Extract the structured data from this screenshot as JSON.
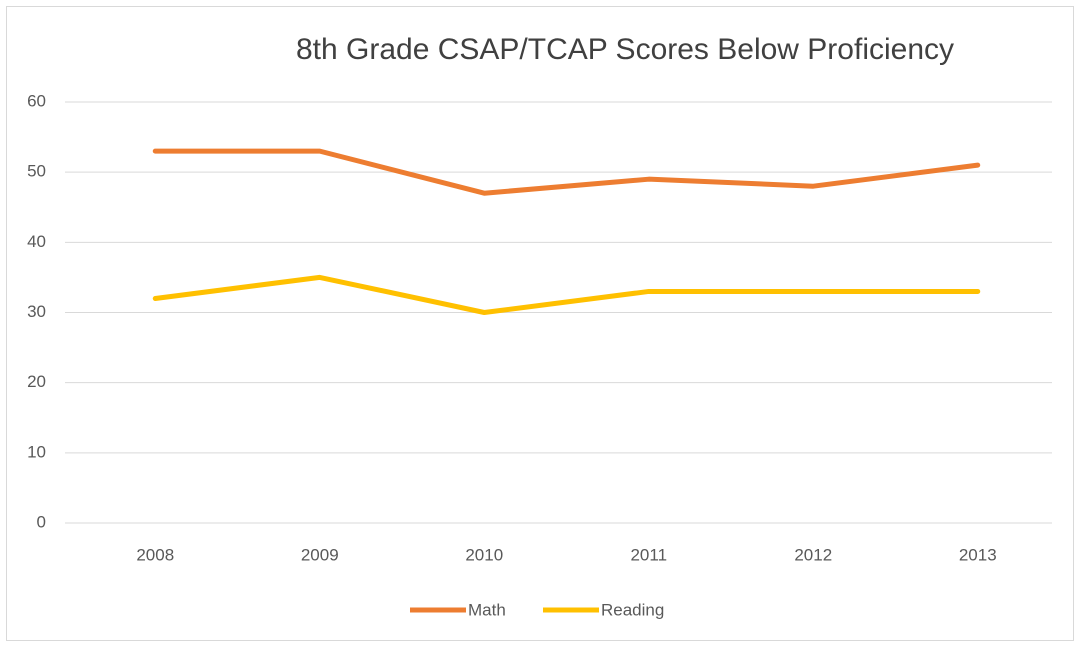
{
  "chart_data": {
    "type": "line",
    "title": "8th Grade CSAP/TCAP Scores Below Proficiency",
    "categories": [
      "2008",
      "2009",
      "2010",
      "2011",
      "2012",
      "2013"
    ],
    "series": [
      {
        "name": "Math",
        "color": "#ed7d31",
        "values": [
          53,
          53,
          47,
          49,
          48,
          51
        ]
      },
      {
        "name": "Reading",
        "color": "#ffc000",
        "values": [
          32,
          35,
          30,
          33,
          33,
          33
        ]
      }
    ],
    "ylim": [
      0,
      60
    ],
    "yticks": [
      0,
      10,
      20,
      30,
      40,
      50,
      60
    ],
    "grid": true,
    "legend": "bottom"
  }
}
